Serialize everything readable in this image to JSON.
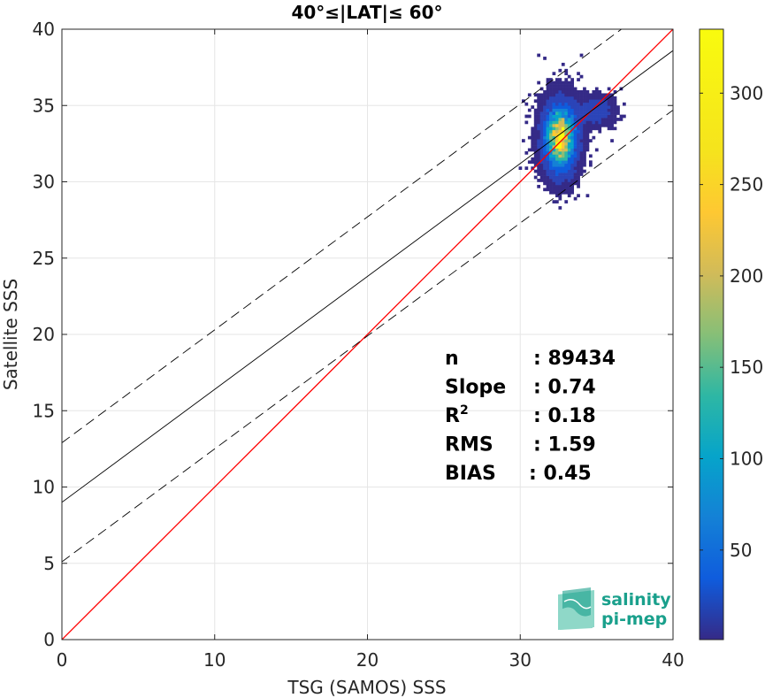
{
  "chart_data": {
    "type": "heatmap",
    "title": "40°≤|LAT|≤ 60°",
    "xlabel": "TSG (SAMOS) SSS",
    "ylabel": "Satellite SSS",
    "xlim": [
      0,
      40
    ],
    "ylim": [
      0,
      40
    ],
    "xticks": [
      0,
      10,
      20,
      30,
      40
    ],
    "yticks": [
      0,
      5,
      10,
      15,
      20,
      25,
      30,
      35,
      40
    ],
    "grid": true,
    "colorbar": {
      "range": [
        1,
        335
      ],
      "ticks": [
        50,
        100,
        150,
        200,
        250,
        300
      ],
      "colormap": "parula"
    },
    "density_cluster": {
      "center_x": 32.5,
      "center_y": 32.8,
      "x_range": [
        28.5,
        36.8
      ],
      "y_range": [
        23.8,
        39.8
      ],
      "peak_count": 335
    },
    "lines": [
      {
        "name": "one-to-one",
        "style": "solid",
        "color": "#ff0000",
        "points": [
          [
            0,
            0
          ],
          [
            40,
            40
          ]
        ]
      },
      {
        "name": "regression",
        "style": "solid",
        "color": "#000000",
        "points": [
          [
            0,
            9.0
          ],
          [
            40,
            38.6
          ]
        ]
      },
      {
        "name": "upper-bound",
        "style": "dashed",
        "color": "#000000",
        "points": [
          [
            0,
            12.9
          ],
          [
            40,
            42.5
          ]
        ]
      },
      {
        "name": "lower-bound",
        "style": "dashed",
        "color": "#000000",
        "points": [
          [
            0,
            5.1
          ],
          [
            40,
            34.7
          ]
        ]
      }
    ],
    "stats": [
      {
        "label": "n",
        "value": ": 89434"
      },
      {
        "label": "Slope",
        "value": ": 0.74"
      },
      {
        "label": "R",
        "sup": "2",
        "value": ": 0.18"
      },
      {
        "label": "RMS",
        "value": ": 1.59"
      },
      {
        "label": "BIAS",
        "value": ": 0.45"
      }
    ]
  },
  "logo": {
    "line1": "salinity",
    "line2": "pi-mep"
  }
}
